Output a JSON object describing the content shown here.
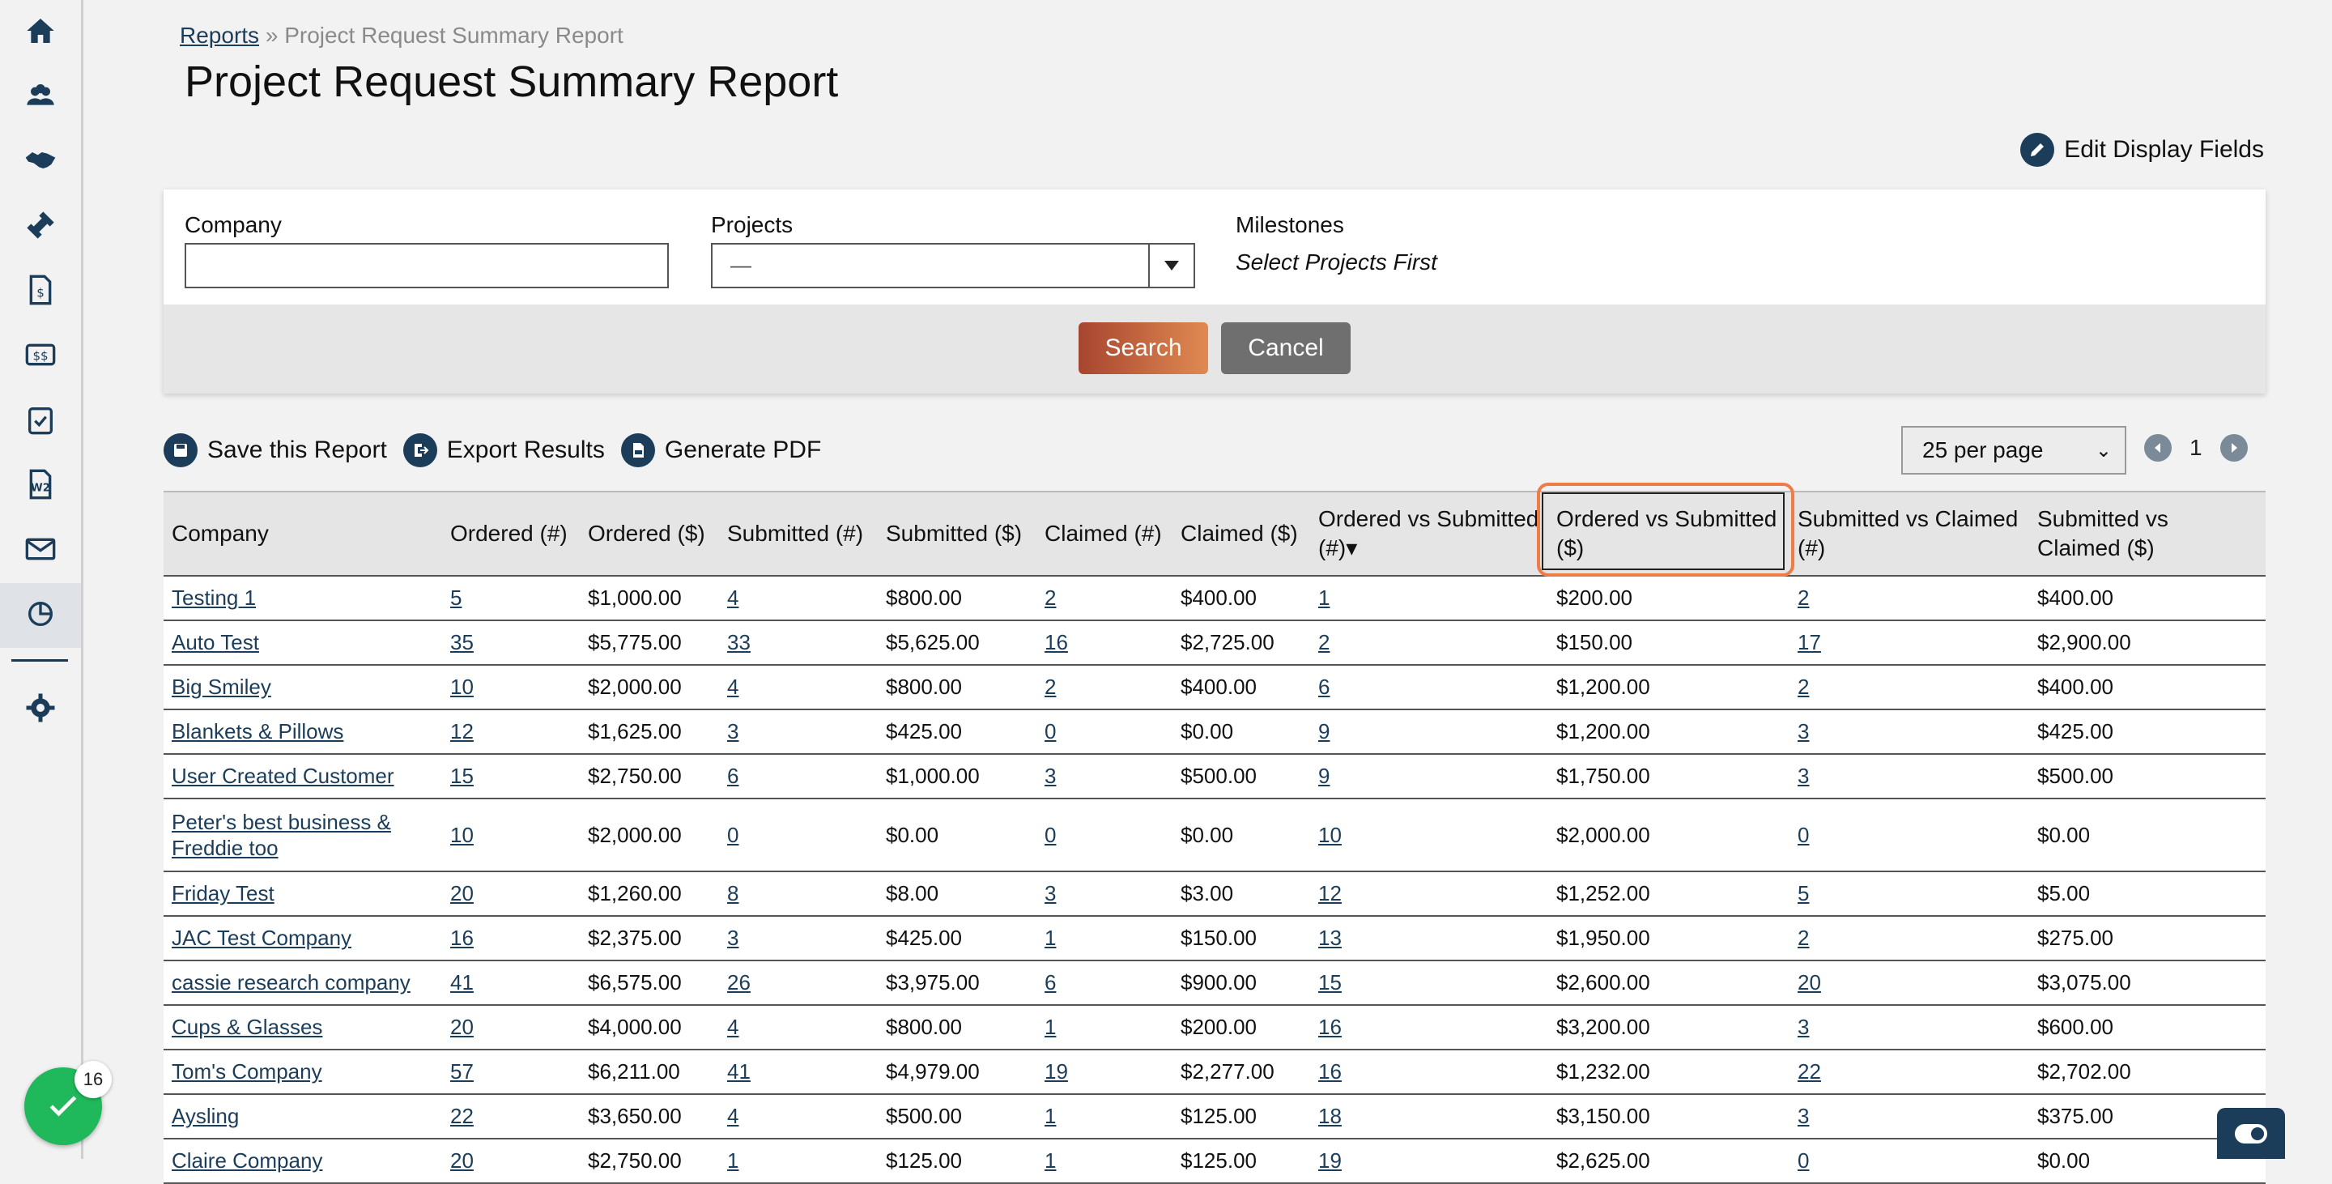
{
  "breadcrumb": {
    "link": "Reports",
    "separator": "»",
    "current": "Project Request Summary Report"
  },
  "page_title": "Project Request Summary Report",
  "edit_display_fields": "Edit Display Fields",
  "filters": {
    "company_label": "Company",
    "company_value": "",
    "projects_label": "Projects",
    "projects_value": "—",
    "milestones_label": "Milestones",
    "milestones_note": "Select Projects First",
    "search_button": "Search",
    "cancel_button": "Cancel"
  },
  "actions": {
    "save": "Save this Report",
    "export": "Export Results",
    "pdf": "Generate PDF"
  },
  "pagination": {
    "per_page": "25 per page",
    "current_page": "1"
  },
  "table": {
    "headers": [
      "Company",
      "Ordered (#)",
      "Ordered ($)",
      "Submitted (#)",
      "Submitted ($)",
      "Claimed (#)",
      "Claimed ($)",
      "Ordered vs Submitted (#)",
      "Ordered vs Submitted ($)",
      "Submitted vs Claimed (#)",
      "Submitted vs Claimed ($)"
    ],
    "sorted_indicator": "▾",
    "rows": [
      [
        "Testing 1",
        "5",
        "$1,000.00",
        "4",
        "$800.00",
        "2",
        "$400.00",
        "1",
        "$200.00",
        "2",
        "$400.00"
      ],
      [
        "Auto Test",
        "35",
        "$5,775.00",
        "33",
        "$5,625.00",
        "16",
        "$2,725.00",
        "2",
        "$150.00",
        "17",
        "$2,900.00"
      ],
      [
        "Big Smiley",
        "10",
        "$2,000.00",
        "4",
        "$800.00",
        "2",
        "$400.00",
        "6",
        "$1,200.00",
        "2",
        "$400.00"
      ],
      [
        "Blankets & Pillows",
        "12",
        "$1,625.00",
        "3",
        "$425.00",
        "0",
        "$0.00",
        "9",
        "$1,200.00",
        "3",
        "$425.00"
      ],
      [
        "User Created Customer",
        "15",
        "$2,750.00",
        "6",
        "$1,000.00",
        "3",
        "$500.00",
        "9",
        "$1,750.00",
        "3",
        "$500.00"
      ],
      [
        "Peter's best business & Freddie too",
        "10",
        "$2,000.00",
        "0",
        "$0.00",
        "0",
        "$0.00",
        "10",
        "$2,000.00",
        "0",
        "$0.00"
      ],
      [
        "Friday Test",
        "20",
        "$1,260.00",
        "8",
        "$8.00",
        "3",
        "$3.00",
        "12",
        "$1,252.00",
        "5",
        "$5.00"
      ],
      [
        "JAC Test Company",
        "16",
        "$2,375.00",
        "3",
        "$425.00",
        "1",
        "$150.00",
        "13",
        "$1,950.00",
        "2",
        "$275.00"
      ],
      [
        "cassie research company",
        "41",
        "$6,575.00",
        "26",
        "$3,975.00",
        "6",
        "$900.00",
        "15",
        "$2,600.00",
        "20",
        "$3,075.00"
      ],
      [
        "Cups & Glasses",
        "20",
        "$4,000.00",
        "4",
        "$800.00",
        "1",
        "$200.00",
        "16",
        "$3,200.00",
        "3",
        "$600.00"
      ],
      [
        "Tom's Company",
        "57",
        "$6,211.00",
        "41",
        "$4,979.00",
        "19",
        "$2,277.00",
        "16",
        "$1,232.00",
        "22",
        "$2,702.00"
      ],
      [
        "Aysling",
        "22",
        "$3,650.00",
        "4",
        "$500.00",
        "1",
        "$125.00",
        "18",
        "$3,150.00",
        "3",
        "$375.00"
      ],
      [
        "Claire Company",
        "20",
        "$2,750.00",
        "1",
        "$125.00",
        "1",
        "$125.00",
        "19",
        "$2,625.00",
        "0",
        "$0.00"
      ]
    ]
  },
  "notification_count": "16",
  "colors": {
    "accent": "#1c3d5a",
    "search": "#c96640",
    "highlight": "#ef7b45",
    "fab": "#1fb85a"
  }
}
